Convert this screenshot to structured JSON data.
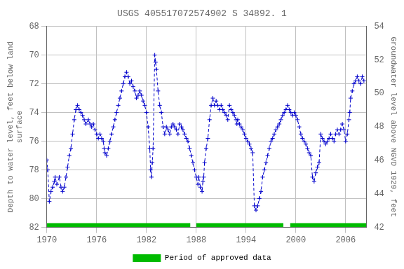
{
  "chart_data": {
    "type": "line",
    "title": "USGS 405517072574902 S 34892. 1",
    "ylabel": "Depth to water level, feet below land\nsurface",
    "y2label": "Groundwater level above NGVD 1929, feet",
    "xlim": [
      1970,
      2008.5
    ],
    "xticks": [
      1970,
      1976,
      1982,
      1988,
      1994,
      2000,
      2006
    ],
    "ylim": [
      82,
      68
    ],
    "yticks": [
      68,
      70,
      72,
      74,
      76,
      78,
      80,
      82
    ],
    "y2lim": [
      42,
      54
    ],
    "y2ticks": [
      42,
      44,
      46,
      48,
      50,
      52,
      54
    ],
    "grid": true,
    "legend": "bottom",
    "series": [
      {
        "type": "line",
        "color": "#0000cc",
        "marker": "+",
        "line_style": "dashed",
        "x": [
          1970.0,
          1970.1,
          1970.3,
          1970.5,
          1970.7,
          1970.9,
          1971.0,
          1971.2,
          1971.5,
          1971.7,
          1971.9,
          1972.1,
          1972.3,
          1972.5,
          1972.7,
          1972.9,
          1973.1,
          1973.3,
          1973.5,
          1973.7,
          1973.9,
          1974.1,
          1974.3,
          1974.5,
          1974.7,
          1975.0,
          1975.2,
          1975.4,
          1975.6,
          1975.8,
          1976.0,
          1976.2,
          1976.4,
          1976.6,
          1976.8,
          1976.9,
          1977.0,
          1977.2,
          1977.4,
          1977.6,
          1977.8,
          1978.0,
          1978.2,
          1978.4,
          1978.6,
          1978.8,
          1979.0,
          1979.2,
          1979.4,
          1979.6,
          1979.8,
          1980.0,
          1980.2,
          1980.4,
          1980.6,
          1980.8,
          1981.0,
          1981.2,
          1981.4,
          1981.6,
          1981.8,
          1982.0,
          1982.2,
          1982.4,
          1982.5,
          1982.6,
          1982.7,
          1982.8,
          1983.0,
          1983.1,
          1983.2,
          1983.4,
          1983.6,
          1983.8,
          1984.0,
          1984.2,
          1984.4,
          1984.6,
          1984.8,
          1985.0,
          1985.2,
          1985.4,
          1985.6,
          1985.8,
          1986.0,
          1986.2,
          1986.4,
          1986.6,
          1986.8,
          1987.0,
          1987.2,
          1987.4,
          1987.6,
          1987.8,
          1988.0,
          1988.2,
          1988.3,
          1988.5,
          1988.7,
          1988.8,
          1988.9,
          1989.0,
          1989.2,
          1989.4,
          1989.6,
          1989.8,
          1990.0,
          1990.2,
          1990.4,
          1990.6,
          1990.8,
          1991.0,
          1991.2,
          1991.4,
          1991.6,
          1991.8,
          1992.0,
          1992.2,
          1992.4,
          1992.6,
          1992.8,
          1992.9,
          1993.0,
          1993.2,
          1993.4,
          1993.6,
          1993.8,
          1994.0,
          1994.2,
          1994.4,
          1994.6,
          1994.8,
          1995.0,
          1995.2,
          1995.4,
          1995.6,
          1995.8,
          1996.0,
          1996.2,
          1996.4,
          1996.6,
          1996.8,
          1997.0,
          1997.2,
          1997.4,
          1997.6,
          1997.8,
          1998.0,
          1998.2,
          1998.4,
          1998.6,
          1998.8,
          1999.0,
          1999.2,
          1999.4,
          1999.6,
          1999.8,
          2000.0,
          2000.2,
          2000.4,
          2000.6,
          2000.8,
          2001.0,
          2001.2,
          2001.4,
          2001.6,
          2001.8,
          2002.0,
          2002.2,
          2002.4,
          2002.6,
          2002.8,
          2003.0,
          2003.2,
          2003.4,
          2003.6,
          2003.8,
          2004.0,
          2004.2,
          2004.4,
          2004.6,
          2004.8,
          2005.0,
          2005.2,
          2005.4,
          2005.6,
          2005.8,
          2006.0,
          2006.2,
          2006.4,
          2006.5,
          2006.6,
          2006.8,
          2007.0,
          2007.2,
          2007.4,
          2007.6,
          2007.8,
          2008.0,
          2008.2
        ],
        "values": [
          77.3,
          78.0,
          80.2,
          79.5,
          79.2,
          78.8,
          78.5,
          79.0,
          78.5,
          79.2,
          79.5,
          79.2,
          78.5,
          77.8,
          77.0,
          76.5,
          75.5,
          74.5,
          73.8,
          73.5,
          73.8,
          74.0,
          74.2,
          74.5,
          74.8,
          74.5,
          74.8,
          75.0,
          74.8,
          75.2,
          75.5,
          75.8,
          75.5,
          75.8,
          76.0,
          76.5,
          76.8,
          77.0,
          76.5,
          76.0,
          75.5,
          75.0,
          74.5,
          74.0,
          73.5,
          73.0,
          72.5,
          72.0,
          71.5,
          71.2,
          71.5,
          72.0,
          71.8,
          72.2,
          72.5,
          73.0,
          72.8,
          72.5,
          72.8,
          73.2,
          73.5,
          74.0,
          75.0,
          76.5,
          78.0,
          78.5,
          77.5,
          76.5,
          70.0,
          70.5,
          71.0,
          72.5,
          73.5,
          74.0,
          75.0,
          75.5,
          75.0,
          75.2,
          75.5,
          75.0,
          74.8,
          75.0,
          75.2,
          75.5,
          74.8,
          75.0,
          75.2,
          75.5,
          75.8,
          76.0,
          76.5,
          77.0,
          77.5,
          78.0,
          78.5,
          79.0,
          78.5,
          79.2,
          79.5,
          78.8,
          78.5,
          77.5,
          76.5,
          75.8,
          74.5,
          73.5,
          73.0,
          73.5,
          73.2,
          73.5,
          73.8,
          73.5,
          73.8,
          74.0,
          74.2,
          74.5,
          73.5,
          73.8,
          74.0,
          74.2,
          74.5,
          74.8,
          74.5,
          74.8,
          75.0,
          75.2,
          75.5,
          75.8,
          76.0,
          76.2,
          76.5,
          76.8,
          80.5,
          80.8,
          80.5,
          80.0,
          79.5,
          78.5,
          78.0,
          77.5,
          77.0,
          76.5,
          76.0,
          75.8,
          75.5,
          75.2,
          75.0,
          74.8,
          74.5,
          74.2,
          74.0,
          73.8,
          73.5,
          73.8,
          74.0,
          74.2,
          74.0,
          74.2,
          74.5,
          75.0,
          75.5,
          75.8,
          76.0,
          76.2,
          76.5,
          76.8,
          77.0,
          78.5,
          78.8,
          78.2,
          77.8,
          77.5,
          75.5,
          75.8,
          76.0,
          76.2,
          76.0,
          75.8,
          75.5,
          75.8,
          76.0,
          75.5,
          75.2,
          75.5,
          75.2,
          74.8,
          75.2,
          76.0,
          75.5,
          74.5,
          74.0,
          73.0,
          72.5,
          72.0,
          71.8,
          71.5,
          71.8,
          72.0,
          71.5,
          71.8
        ]
      },
      {
        "type": "area",
        "name": "Period of approved data",
        "color": "#00bb00",
        "ranges": [
          [
            1970.0,
            1987.3
          ],
          [
            1988.0,
            1998.5
          ],
          [
            1999.3,
            2008.5
          ]
        ],
        "y_range": [
          82.0,
          81.7
        ]
      }
    ]
  }
}
